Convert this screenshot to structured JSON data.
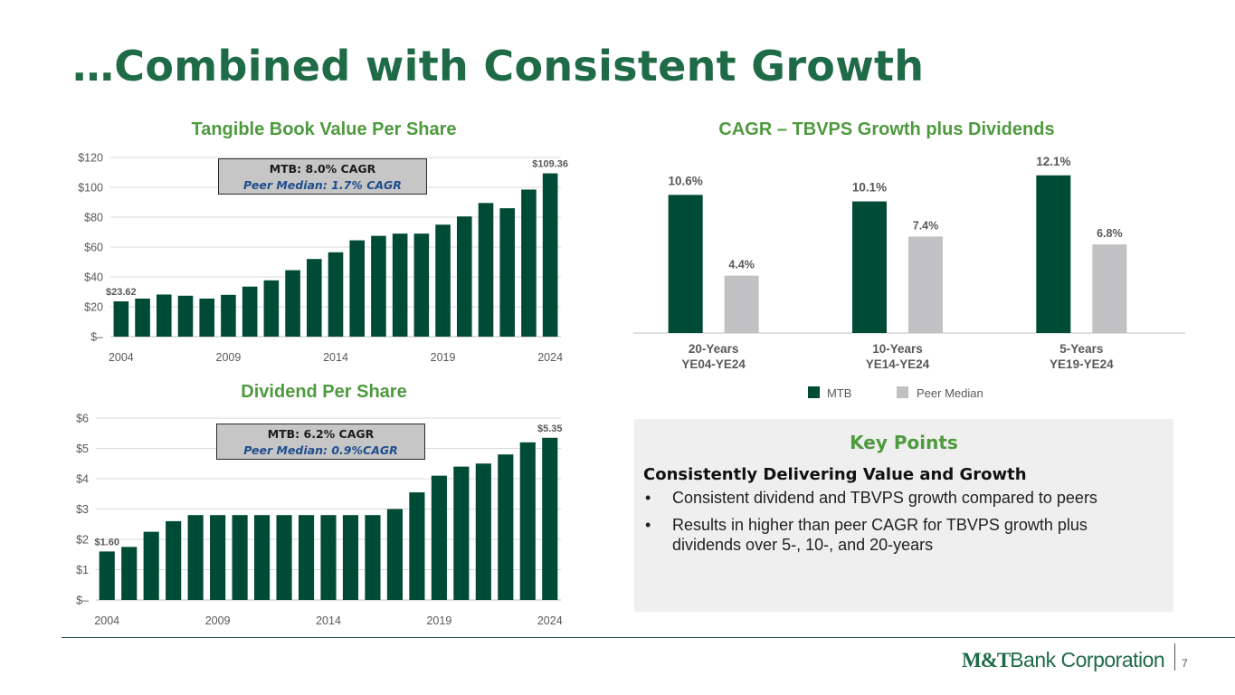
{
  "page": {
    "title": "…Combined with Consistent Growth",
    "page_number": "7",
    "logo_text_1": "M&T",
    "logo_text_2": "Bank Corporation"
  },
  "tbvps_box": {
    "line1": "MTB: 8.0% CAGR",
    "line2": "Peer Median: 1.7% CAGR"
  },
  "dps_box": {
    "line1": "MTB: 6.2% CAGR",
    "line2": "Peer Median: 0.9%CAGR"
  },
  "key_points": {
    "title": "Key Points",
    "heading": "Consistently Delivering Value and Growth",
    "bullets": [
      "Consistent dividend and TBVPS growth compared to peers",
      "Results in higher than peer CAGR for TBVPS growth plus dividends over 5-, 10-, and 20-years"
    ]
  },
  "colors": {
    "title_green": "#1f6b47",
    "chart_title_green": "#4e9a3e",
    "mtb_bar": "#004b35",
    "peer_bar": "#c1c1c4"
  },
  "chart_data": [
    {
      "id": "tbvps",
      "type": "bar",
      "title": "Tangible Book Value Per Share",
      "categories": [
        "2004",
        "2005",
        "2006",
        "2007",
        "2008",
        "2009",
        "2010",
        "2011",
        "2012",
        "2013",
        "2014",
        "2015",
        "2016",
        "2017",
        "2018",
        "2019",
        "2020",
        "2021",
        "2022",
        "2023",
        "2024"
      ],
      "values": [
        23.62,
        25.5,
        28.2,
        27.4,
        25.5,
        28.0,
        33.5,
        37.7,
        44.5,
        52.0,
        56.5,
        64.5,
        67.5,
        69.0,
        69.0,
        75.0,
        80.5,
        89.5,
        86.0,
        98.5,
        109.36
      ],
      "x_tick_labels": [
        "2004",
        "2009",
        "2014",
        "2019",
        "2024"
      ],
      "y_tick_labels": [
        "$–",
        "$20",
        "$40",
        "$60",
        "$80",
        "$100",
        "$120"
      ],
      "ylim": [
        0,
        120
      ],
      "data_labels": [
        {
          "index": 0,
          "text": "$23.62"
        },
        {
          "index": 20,
          "text": "$109.36"
        }
      ]
    },
    {
      "id": "dps",
      "type": "bar",
      "title": "Dividend Per Share",
      "categories": [
        "2004",
        "2005",
        "2006",
        "2007",
        "2008",
        "2009",
        "2010",
        "2011",
        "2012",
        "2013",
        "2014",
        "2015",
        "2016",
        "2017",
        "2018",
        "2019",
        "2020",
        "2021",
        "2022",
        "2023",
        "2024"
      ],
      "values": [
        1.6,
        1.75,
        2.25,
        2.6,
        2.8,
        2.8,
        2.8,
        2.8,
        2.8,
        2.8,
        2.8,
        2.8,
        2.8,
        3.0,
        3.55,
        4.1,
        4.4,
        4.5,
        4.8,
        5.2,
        5.35
      ],
      "x_tick_labels": [
        "2004",
        "2009",
        "2014",
        "2019",
        "2024"
      ],
      "y_tick_labels": [
        "$–",
        "$1",
        "$2",
        "$3",
        "$4",
        "$5",
        "$6"
      ],
      "ylim": [
        0,
        6
      ],
      "data_labels": [
        {
          "index": 0,
          "text": "$1.60"
        },
        {
          "index": 20,
          "text": "$5.35"
        }
      ]
    },
    {
      "id": "cagr",
      "type": "bar",
      "title": "CAGR – TBVPS Growth plus Dividends",
      "categories": [
        {
          "line1": "20-Years",
          "line2": "YE04-YE24"
        },
        {
          "line1": "10-Years",
          "line2": "YE14-YE24"
        },
        {
          "line1": "5-Years",
          "line2": "YE19-YE24"
        }
      ],
      "series": [
        {
          "name": "MTB",
          "values": [
            10.6,
            10.1,
            12.1
          ],
          "labels": [
            "10.6%",
            "10.1%",
            "12.1%"
          ]
        },
        {
          "name": "Peer Median",
          "values": [
            4.4,
            7.4,
            6.8
          ],
          "labels": [
            "4.4%",
            "7.4%",
            "6.8%"
          ]
        }
      ],
      "ylim": [
        0,
        12.5
      ],
      "legend": "bottom-center"
    }
  ]
}
